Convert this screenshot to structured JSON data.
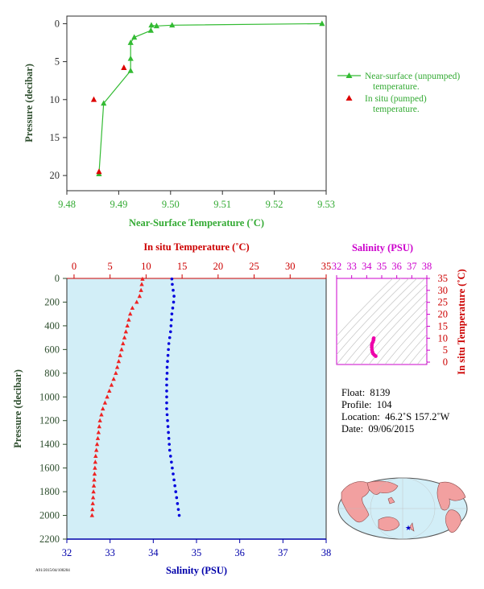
{
  "colors": {
    "top_axis": "#2e2e2e",
    "top_text": "#33aa33",
    "surface_line": "#33bb33",
    "insitu_marker": "#dd0000",
    "temp_profile": "#ee2222",
    "sal_profile": "#0000dd",
    "panel_bg": "#d2eef7",
    "sal_axis": "#0000aa",
    "temp_axis": "#cc0000",
    "ts_frame": "#cc00cc",
    "ts_points": "#ee00aa",
    "depth_axis": "#2e4e2e",
    "land": "#f2a0a0",
    "ocean": "#d2eef7",
    "float_star": "#0000cc"
  },
  "chart_data": [
    {
      "type": "scatter",
      "xlabel": "Near-Surface Temperature (˚C)",
      "ylabel": "Pressure (decibar)",
      "xlim": [
        9.48,
        9.53
      ],
      "ylim": [
        22,
        -1
      ],
      "xticks": [
        "9.48",
        "9.49",
        "9.50",
        "9.51",
        "9.52",
        "9.53"
      ],
      "yticks": [
        "0",
        "5",
        "10",
        "15",
        "20"
      ],
      "legend": [
        "Near-surface (unpumped) temperature.",
        "In situ (pumped) temperature."
      ],
      "legend_placement": "right",
      "series": [
        {
          "name": "Near-surface (unpumped) temperature.",
          "style": "line-triangle",
          "points": [
            [
              9.5292,
              0.0
            ],
            [
              9.5003,
              0.2
            ],
            [
              9.4973,
              0.3
            ],
            [
              9.4963,
              0.2
            ],
            [
              9.4962,
              0.9
            ],
            [
              9.493,
              1.8
            ],
            [
              9.4923,
              2.5
            ],
            [
              9.4923,
              4.6
            ],
            [
              9.4923,
              6.2
            ],
            [
              9.4871,
              10.5
            ],
            [
              9.4862,
              19.8
            ]
          ]
        },
        {
          "name": "In situ (pumped) temperature.",
          "style": "triangle",
          "points": [
            [
              9.491,
              5.8
            ],
            [
              9.4852,
              10.0
            ],
            [
              9.4862,
              19.5
            ]
          ]
        }
      ]
    },
    {
      "type": "line",
      "ylabel": "Pressure (decibar)",
      "ylim": [
        2200,
        0
      ],
      "yticks": [
        "0",
        "200",
        "400",
        "600",
        "800",
        "1000",
        "1200",
        "1400",
        "1600",
        "1800",
        "2000",
        "2200"
      ],
      "temperature_axis": {
        "label": "In situ Temperature (˚C)",
        "range": [
          -1,
          35
        ],
        "ticks": [
          "0",
          "5",
          "10",
          "15",
          "20",
          "25",
          "30",
          "35"
        ]
      },
      "salinity_axis": {
        "label": "Salinity (PSU)",
        "range": [
          32,
          38
        ],
        "ticks": [
          "32",
          "33",
          "34",
          "35",
          "36",
          "37",
          "38"
        ]
      },
      "series": [
        {
          "name": "In situ Temperature (˚C)",
          "axis": "temperature",
          "pressure": [
            5,
            50,
            100,
            150,
            200,
            250,
            300,
            350,
            400,
            450,
            500,
            550,
            600,
            650,
            700,
            750,
            800,
            850,
            900,
            950,
            1000,
            1050,
            1100,
            1150,
            1200,
            1250,
            1300,
            1350,
            1400,
            1450,
            1500,
            1550,
            1600,
            1650,
            1700,
            1750,
            1800,
            1850,
            1900,
            1950,
            2000
          ],
          "values": [
            9.5,
            9.4,
            9.3,
            9.1,
            8.7,
            8.1,
            7.8,
            7.6,
            7.4,
            7.2,
            7.0,
            6.8,
            6.6,
            6.4,
            6.2,
            6.0,
            5.8,
            5.5,
            5.2,
            4.9,
            4.6,
            4.3,
            4.0,
            3.8,
            3.6,
            3.5,
            3.4,
            3.3,
            3.2,
            3.1,
            3.0,
            2.95,
            2.9,
            2.85,
            2.8,
            2.75,
            2.7,
            2.65,
            2.6,
            2.55,
            2.5
          ]
        },
        {
          "name": "Salinity (PSU)",
          "axis": "salinity",
          "pressure": [
            5,
            50,
            100,
            150,
            200,
            250,
            300,
            350,
            400,
            450,
            500,
            550,
            600,
            650,
            700,
            750,
            800,
            850,
            900,
            950,
            1000,
            1050,
            1100,
            1150,
            1200,
            1250,
            1300,
            1350,
            1400,
            1450,
            1500,
            1550,
            1600,
            1650,
            1700,
            1750,
            1800,
            1850,
            1900,
            1950,
            2000
          ],
          "values": [
            34.43,
            34.44,
            34.46,
            34.48,
            34.47,
            34.45,
            34.43,
            34.42,
            34.41,
            34.4,
            34.38,
            34.36,
            34.35,
            34.34,
            34.33,
            34.32,
            34.32,
            34.31,
            34.31,
            34.31,
            34.31,
            34.31,
            34.31,
            34.32,
            34.33,
            34.34,
            34.35,
            34.36,
            34.37,
            34.38,
            34.4,
            34.42,
            34.44,
            34.46,
            34.48,
            34.5,
            34.52,
            34.54,
            34.56,
            34.58,
            34.6
          ]
        }
      ]
    },
    {
      "type": "scatter",
      "title": "Salinity (PSU)",
      "xlabel": "Salinity (PSU)",
      "ylabel": "In situ Temperature (˚C)",
      "xlim": [
        32,
        38
      ],
      "ylim": [
        -1,
        35
      ],
      "xticks": [
        "32",
        "33",
        "34",
        "35",
        "36",
        "37",
        "38"
      ],
      "yticks": [
        "0",
        "5",
        "10",
        "15",
        "20",
        "25",
        "30",
        "35"
      ],
      "points": [
        [
          34.6,
          2.5
        ],
        [
          34.5,
          3.0
        ],
        [
          34.42,
          3.6
        ],
        [
          34.38,
          4.3
        ],
        [
          34.35,
          5.2
        ],
        [
          34.34,
          6.2
        ],
        [
          34.34,
          7.0
        ],
        [
          34.36,
          7.8
        ],
        [
          34.42,
          8.5
        ],
        [
          34.46,
          9.3
        ],
        [
          34.45,
          9.6
        ],
        [
          34.47,
          10.0
        ]
      ]
    },
    {
      "type": "map",
      "projection": "world",
      "marker": "float-location-star"
    }
  ],
  "info": {
    "float_label": "Float:",
    "float_value": "8139",
    "profile_label": "Profile:",
    "profile_value": "104",
    "location_label": "Location:",
    "location_value": "46.2˚S  157.2˚W",
    "date_label": "Date:",
    "date_value": "09/06/2015"
  },
  "footer": {
    "small_text": "A91/2015/04/100204"
  }
}
